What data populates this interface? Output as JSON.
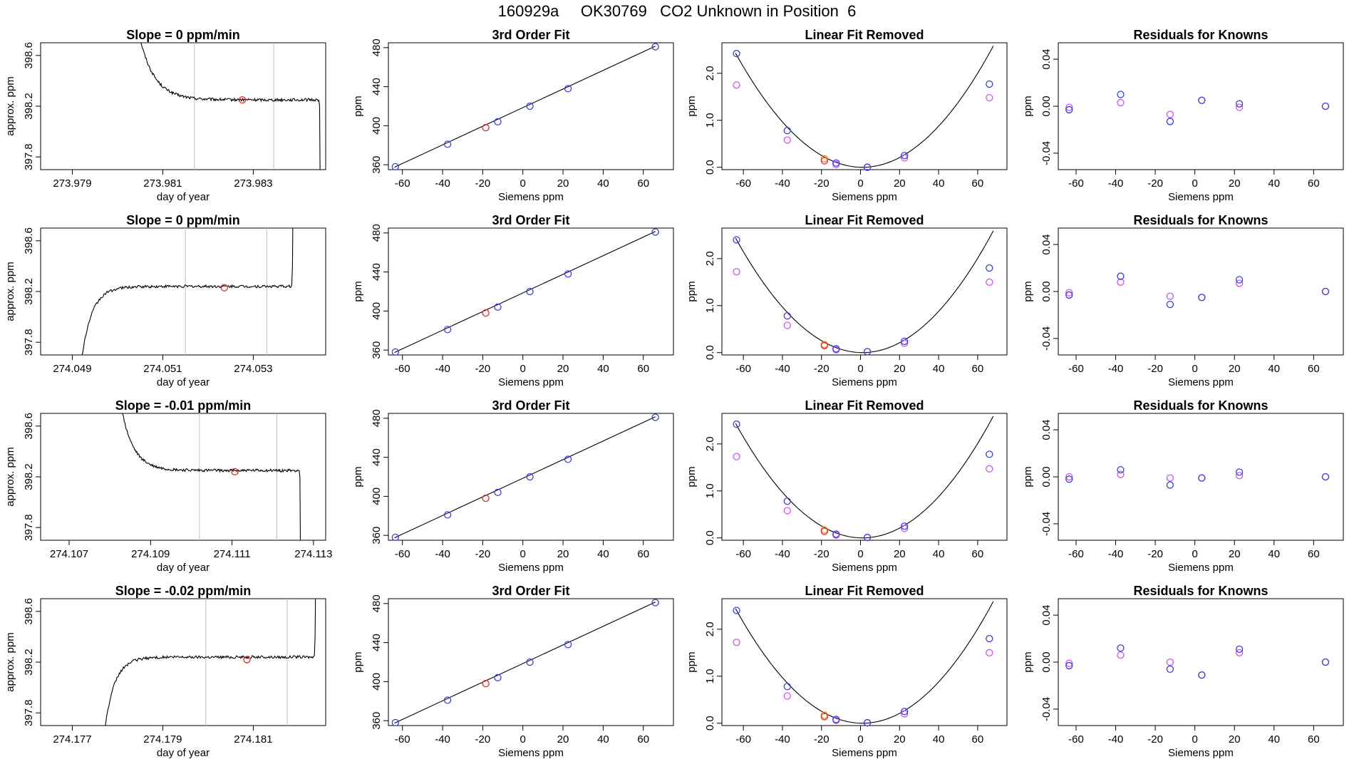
{
  "title": "160929a     OK30769   CO2 Unknown in Position  6",
  "colors": {
    "blue": "#3a3aff",
    "violet": "#d452ff",
    "red": "#ff2020",
    "orange": "#ff8c00",
    "line": "#000000",
    "vline": "#bebebe"
  },
  "chart_data": [
    {
      "type": "line",
      "title": "Slope =  0  ppm/min",
      "xlabel": "day of year",
      "ylabel": "approx. ppm",
      "xlim": [
        273.9783,
        273.9846
      ],
      "ylim": [
        397.7,
        398.7
      ],
      "xticks": [
        273.979,
        273.981,
        273.983
      ],
      "xtick_labels": [
        "273.979",
        "273.981",
        "273.983"
      ],
      "yticks": [
        397.8,
        398.2,
        398.6
      ],
      "ytick_labels": [
        "397.8",
        "398.2",
        "398.6"
      ],
      "start": 273.9804,
      "end": 273.98445,
      "start_value": 398.9,
      "plateau": 398.25,
      "decay": 0.00033,
      "tail": "drop",
      "vlines": [
        273.9817,
        273.98345
      ],
      "marker": {
        "x": 273.98276,
        "y": 398.25
      }
    },
    {
      "type": "scatter",
      "title": "3rd Order Fit",
      "xlabel": "Siemens ppm",
      "ylabel": "ppm",
      "xlim": [
        -67,
        75
      ],
      "ylim": [
        355,
        485
      ],
      "xticks": [
        -60,
        -40,
        -20,
        0,
        20,
        40,
        60
      ],
      "xtick_labels": [
        "-60",
        "-40",
        "-20",
        "0",
        "20",
        "40",
        "60"
      ],
      "yticks": [
        360,
        400,
        440,
        480
      ],
      "ytick_labels": [
        "360",
        "400",
        "440",
        "480"
      ],
      "fit_line": [
        [
          -64,
          357.5
        ],
        [
          66,
          481.5
        ]
      ],
      "knowns": {
        "x": [
          -63.5,
          -37.5,
          -12.5,
          3.5,
          22.5,
          66
        ],
        "y": [
          358,
          381,
          404,
          420,
          438,
          481
        ]
      },
      "unknown": {
        "x": -18.5,
        "y": 398
      }
    },
    {
      "type": "scatter",
      "title": "Linear Fit Removed",
      "xlabel": "Siemens ppm",
      "ylabel": "ppm",
      "xlim": [
        -71,
        75
      ],
      "ylim": [
        -0.05,
        2.65
      ],
      "xticks": [
        -60,
        -40,
        -20,
        0,
        20,
        40,
        60
      ],
      "xtick_labels": [
        "-60",
        "-40",
        "-20",
        "0",
        "20",
        "40",
        "60"
      ],
      "yticks": [
        0,
        1,
        2
      ],
      "ytick_labels": [
        "0.0",
        "1.0",
        "2.0"
      ],
      "curve": {
        "from": -64,
        "to": 68,
        "vertex": 1,
        "coef": 0.000575
      },
      "blue": {
        "x": [
          -63.5,
          -37.5,
          -12.5,
          3.5,
          22.5,
          66
        ],
        "y": [
          2.42,
          0.78,
          0.09,
          0.0,
          0.25,
          1.77
        ]
      },
      "violet": {
        "x": [
          -63.5,
          -37.5,
          -12.5,
          3.5,
          22.5,
          66
        ],
        "y": [
          1.75,
          0.58,
          0.06,
          0.0,
          0.2,
          1.48
        ]
      },
      "unknown": {
        "x": [
          -18.5,
          -18.5
        ],
        "y": [
          0.18,
          0.14
        ]
      }
    },
    {
      "type": "scatter",
      "title": "Residuals for Knowns",
      "xlabel": "Siemens ppm",
      "ylabel": "ppm",
      "xlim": [
        -69,
        75
      ],
      "ylim": [
        -0.054,
        0.054
      ],
      "xticks": [
        -60,
        -40,
        -20,
        0,
        20,
        40,
        60
      ],
      "xtick_labels": [
        "-60",
        "-40",
        "-20",
        "0",
        "20",
        "40",
        "60"
      ],
      "yticks": [
        -0.04,
        0.0,
        0.04
      ],
      "ytick_labels": [
        "-0.04",
        "0.00",
        "0.04"
      ],
      "blue": {
        "x": [
          -63.5,
          -37.5,
          -12.5,
          3.5,
          22.5,
          66
        ],
        "y": [
          -0.003,
          0.01,
          -0.013,
          0.005,
          0.002,
          0.0
        ]
      },
      "violet": {
        "x": [
          -63.5,
          -37.5,
          -12.5,
          3.5,
          22.5,
          66
        ],
        "y": [
          -0.001,
          0.003,
          -0.007,
          0.005,
          -0.001,
          0.0
        ]
      }
    },
    {
      "type": "line",
      "title": "Slope =  0  ppm/min",
      "xlabel": "day of year",
      "ylabel": "approx. ppm",
      "xlim": [
        274.0483,
        274.0546
      ],
      "ylim": [
        397.7,
        398.7
      ],
      "xticks": [
        274.049,
        274.051,
        274.053
      ],
      "xtick_labels": [
        "274.049",
        "274.051",
        "274.053"
      ],
      "yticks": [
        397.8,
        398.2,
        398.6
      ],
      "ytick_labels": [
        "397.8",
        "398.2",
        "398.6"
      ],
      "start": 274.0492,
      "end": 274.05385,
      "start_value": 397.65,
      "plateau": 398.24,
      "decay": 0.00023,
      "tail": "rise",
      "vlines": [
        274.0515,
        274.0533
      ],
      "marker": {
        "x": 274.05236,
        "y": 398.23
      }
    },
    {
      "type": "scatter",
      "title": "3rd Order Fit",
      "xlabel": "Siemens ppm",
      "ylabel": "ppm",
      "xlim": [
        -67,
        75
      ],
      "ylim": [
        355,
        485
      ],
      "xticks": [
        -60,
        -40,
        -20,
        0,
        20,
        40,
        60
      ],
      "xtick_labels": [
        "-60",
        "-40",
        "-20",
        "0",
        "20",
        "40",
        "60"
      ],
      "yticks": [
        360,
        400,
        440,
        480
      ],
      "ytick_labels": [
        "360",
        "400",
        "440",
        "480"
      ],
      "fit_line": [
        [
          -64,
          357.5
        ],
        [
          66,
          481.5
        ]
      ],
      "knowns": {
        "x": [
          -63.5,
          -37.5,
          -12.5,
          3.5,
          22.5,
          66
        ],
        "y": [
          358,
          381,
          404,
          420,
          438,
          481
        ]
      },
      "unknown": {
        "x": -18.5,
        "y": 398
      }
    },
    {
      "type": "scatter",
      "title": "Linear Fit Removed",
      "xlabel": "Siemens ppm",
      "ylabel": "ppm",
      "xlim": [
        -71,
        75
      ],
      "ylim": [
        -0.05,
        2.65
      ],
      "xticks": [
        -60,
        -40,
        -20,
        0,
        20,
        40,
        60
      ],
      "xtick_labels": [
        "-60",
        "-40",
        "-20",
        "0",
        "20",
        "40",
        "60"
      ],
      "yticks": [
        0,
        1,
        2
      ],
      "ytick_labels": [
        "0.0",
        "1.0",
        "2.0"
      ],
      "curve": {
        "from": -64,
        "to": 68,
        "vertex": 1,
        "coef": 0.000577
      },
      "blue": {
        "x": [
          -63.5,
          -37.5,
          -12.5,
          3.5,
          22.5,
          66
        ],
        "y": [
          2.4,
          0.78,
          0.08,
          0.02,
          0.24,
          1.8
        ]
      },
      "violet": {
        "x": [
          -63.5,
          -37.5,
          -12.5,
          3.5,
          22.5,
          66
        ],
        "y": [
          1.72,
          0.58,
          0.06,
          0.02,
          0.2,
          1.5
        ]
      },
      "unknown": {
        "x": [
          -18.5,
          -18.5
        ],
        "y": [
          0.17,
          0.15
        ]
      }
    },
    {
      "type": "scatter",
      "title": "Residuals for Knowns",
      "xlabel": "Siemens ppm",
      "ylabel": "ppm",
      "xlim": [
        -69,
        75
      ],
      "ylim": [
        -0.054,
        0.054
      ],
      "xticks": [
        -60,
        -40,
        -20,
        0,
        20,
        40,
        60
      ],
      "xtick_labels": [
        "-60",
        "-40",
        "-20",
        "0",
        "20",
        "40",
        "60"
      ],
      "yticks": [
        -0.04,
        0.0,
        0.04
      ],
      "ytick_labels": [
        "-0.04",
        "0.00",
        "0.04"
      ],
      "blue": {
        "x": [
          -63.5,
          -37.5,
          -12.5,
          3.5,
          22.5,
          66
        ],
        "y": [
          -0.003,
          0.013,
          -0.011,
          -0.005,
          0.01,
          0.0
        ]
      },
      "violet": {
        "x": [
          -63.5,
          -37.5,
          -12.5,
          3.5,
          22.5,
          66
        ],
        "y": [
          -0.001,
          0.008,
          -0.004,
          -0.005,
          0.007,
          0.0
        ]
      }
    },
    {
      "type": "line",
      "title": "Slope =  -0.01  ppm/min",
      "xlabel": "day of year",
      "ylabel": "approx. ppm",
      "xlim": [
        274.1063,
        274.1133
      ],
      "ylim": [
        397.7,
        398.7
      ],
      "xticks": [
        274.107,
        274.109,
        274.111,
        274.113
      ],
      "xtick_labels": [
        "274.107",
        "274.109",
        "274.111",
        "274.113"
      ],
      "yticks": [
        397.8,
        398.2,
        398.6
      ],
      "ytick_labels": [
        "397.8",
        "398.2",
        "398.6"
      ],
      "start": 274.1082,
      "end": 274.11265,
      "start_value": 398.9,
      "plateau": 398.25,
      "decay": 0.0003,
      "tail": "drop",
      "vlines": [
        274.1102,
        274.1121
      ],
      "marker": {
        "x": 274.11107,
        "y": 398.24
      }
    },
    {
      "type": "scatter",
      "title": "3rd Order Fit",
      "xlabel": "Siemens ppm",
      "ylabel": "ppm",
      "xlim": [
        -67,
        75
      ],
      "ylim": [
        355,
        485
      ],
      "xticks": [
        -60,
        -40,
        -20,
        0,
        20,
        40,
        60
      ],
      "xtick_labels": [
        "-60",
        "-40",
        "-20",
        "0",
        "20",
        "40",
        "60"
      ],
      "yticks": [
        360,
        400,
        440,
        480
      ],
      "ytick_labels": [
        "360",
        "400",
        "440",
        "480"
      ],
      "fit_line": [
        [
          -64,
          357.5
        ],
        [
          66,
          481.5
        ]
      ],
      "knowns": {
        "x": [
          -63.5,
          -37.5,
          -12.5,
          3.5,
          22.5,
          66
        ],
        "y": [
          358,
          381,
          404,
          420,
          438,
          481
        ]
      },
      "unknown": {
        "x": -18.5,
        "y": 398
      }
    },
    {
      "type": "scatter",
      "title": "Linear Fit Removed",
      "xlabel": "Siemens ppm",
      "ylabel": "ppm",
      "xlim": [
        -71,
        75
      ],
      "ylim": [
        -0.05,
        2.65
      ],
      "xticks": [
        -60,
        -40,
        -20,
        0,
        20,
        40,
        60
      ],
      "xtick_labels": [
        "-60",
        "-40",
        "-20",
        "0",
        "20",
        "40",
        "60"
      ],
      "yticks": [
        0,
        1,
        2
      ],
      "ytick_labels": [
        "0.0",
        "1.0",
        "2.0"
      ],
      "curve": {
        "from": -64,
        "to": 68,
        "vertex": 1,
        "coef": 0.000577
      },
      "blue": {
        "x": [
          -63.5,
          -37.5,
          -12.5,
          3.5,
          22.5,
          66
        ],
        "y": [
          2.42,
          0.78,
          0.08,
          0.01,
          0.25,
          1.78
        ]
      },
      "violet": {
        "x": [
          -63.5,
          -37.5,
          -12.5,
          3.5,
          22.5,
          66
        ],
        "y": [
          1.73,
          0.58,
          0.06,
          0.01,
          0.2,
          1.47
        ]
      },
      "unknown": {
        "x": [
          -18.5,
          -18.5
        ],
        "y": [
          0.17,
          0.14
        ]
      }
    },
    {
      "type": "scatter",
      "title": "Residuals for Knowns",
      "xlabel": "Siemens ppm",
      "ylabel": "ppm",
      "xlim": [
        -69,
        75
      ],
      "ylim": [
        -0.054,
        0.054
      ],
      "xticks": [
        -60,
        -40,
        -20,
        0,
        20,
        40,
        60
      ],
      "xtick_labels": [
        "-60",
        "-40",
        "-20",
        "0",
        "20",
        "40",
        "60"
      ],
      "yticks": [
        -0.04,
        0.0,
        0.04
      ],
      "ytick_labels": [
        "-0.04",
        "0.00",
        "0.04"
      ],
      "blue": {
        "x": [
          -63.5,
          -37.5,
          -12.5,
          3.5,
          22.5,
          66
        ],
        "y": [
          -0.002,
          0.006,
          -0.007,
          -0.001,
          0.004,
          0.0
        ]
      },
      "violet": {
        "x": [
          -63.5,
          -37.5,
          -12.5,
          3.5,
          22.5,
          66
        ],
        "y": [
          0.0,
          0.002,
          -0.001,
          -0.001,
          0.001,
          0.0
        ]
      }
    },
    {
      "type": "line",
      "title": "Slope =  -0.02  ppm/min",
      "xlabel": "day of year",
      "ylabel": "approx. ppm",
      "xlim": [
        274.1763,
        274.1826
      ],
      "ylim": [
        397.7,
        398.7
      ],
      "xticks": [
        274.177,
        274.179,
        274.181
      ],
      "xtick_labels": [
        "274.177",
        "274.179",
        "274.181"
      ],
      "yticks": [
        397.8,
        398.2,
        398.6
      ],
      "ytick_labels": [
        "397.8",
        "398.2",
        "398.6"
      ],
      "start": 274.1777,
      "end": 274.18235,
      "start_value": 397.62,
      "plateau": 398.24,
      "decay": 0.00022,
      "tail": "rise",
      "vlines": [
        274.17995,
        274.18175
      ],
      "marker": {
        "x": 274.18086,
        "y": 398.22
      }
    },
    {
      "type": "scatter",
      "title": "3rd Order Fit",
      "xlabel": "Siemens ppm",
      "ylabel": "ppm",
      "xlim": [
        -67,
        75
      ],
      "ylim": [
        355,
        485
      ],
      "xticks": [
        -60,
        -40,
        -20,
        0,
        20,
        40,
        60
      ],
      "xtick_labels": [
        "-60",
        "-40",
        "-20",
        "0",
        "20",
        "40",
        "60"
      ],
      "yticks": [
        360,
        400,
        440,
        480
      ],
      "ytick_labels": [
        "360",
        "400",
        "440",
        "480"
      ],
      "fit_line": [
        [
          -64,
          357.5
        ],
        [
          66,
          481.5
        ]
      ],
      "knowns": {
        "x": [
          -63.5,
          -37.5,
          -12.5,
          3.5,
          22.5,
          66
        ],
        "y": [
          358,
          381,
          404,
          420,
          438,
          481
        ]
      },
      "unknown": {
        "x": -18.5,
        "y": 398
      }
    },
    {
      "type": "scatter",
      "title": "Linear Fit Removed",
      "xlabel": "Siemens ppm",
      "ylabel": "ppm",
      "xlim": [
        -71,
        75
      ],
      "ylim": [
        -0.05,
        2.65
      ],
      "xticks": [
        -60,
        -40,
        -20,
        0,
        20,
        40,
        60
      ],
      "xtick_labels": [
        "-60",
        "-40",
        "-20",
        "0",
        "20",
        "40",
        "60"
      ],
      "yticks": [
        0,
        1,
        2
      ],
      "ytick_labels": [
        "0.0",
        "1.0",
        "2.0"
      ],
      "curve": {
        "from": -64,
        "to": 68,
        "vertex": 1,
        "coef": 0.000577
      },
      "blue": {
        "x": [
          -63.5,
          -37.5,
          -12.5,
          3.5,
          22.5,
          66
        ],
        "y": [
          2.4,
          0.78,
          0.08,
          0.01,
          0.25,
          1.8
        ]
      },
      "violet": {
        "x": [
          -63.5,
          -37.5,
          -12.5,
          3.5,
          22.5,
          66
        ],
        "y": [
          1.72,
          0.58,
          0.06,
          0.01,
          0.2,
          1.5
        ]
      },
      "unknown": {
        "x": [
          -18.5,
          -18.5
        ],
        "y": [
          0.17,
          0.14
        ]
      }
    },
    {
      "type": "scatter",
      "title": "Residuals for Knowns",
      "xlabel": "Siemens ppm",
      "ylabel": "ppm",
      "xlim": [
        -69,
        75
      ],
      "ylim": [
        -0.054,
        0.054
      ],
      "xticks": [
        -60,
        -40,
        -20,
        0,
        20,
        40,
        60
      ],
      "xtick_labels": [
        "-60",
        "-40",
        "-20",
        "0",
        "20",
        "40",
        "60"
      ],
      "yticks": [
        -0.04,
        0.0,
        0.04
      ],
      "ytick_labels": [
        "-0.04",
        "0.00",
        "0.04"
      ],
      "blue": {
        "x": [
          -63.5,
          -37.5,
          -12.5,
          3.5,
          22.5,
          66
        ],
        "y": [
          -0.003,
          0.012,
          -0.006,
          -0.011,
          0.011,
          0.0
        ]
      },
      "violet": {
        "x": [
          -63.5,
          -37.5,
          -12.5,
          3.5,
          22.5,
          66
        ],
        "y": [
          -0.001,
          0.006,
          0.0,
          -0.011,
          0.008,
          0.0
        ]
      }
    }
  ]
}
